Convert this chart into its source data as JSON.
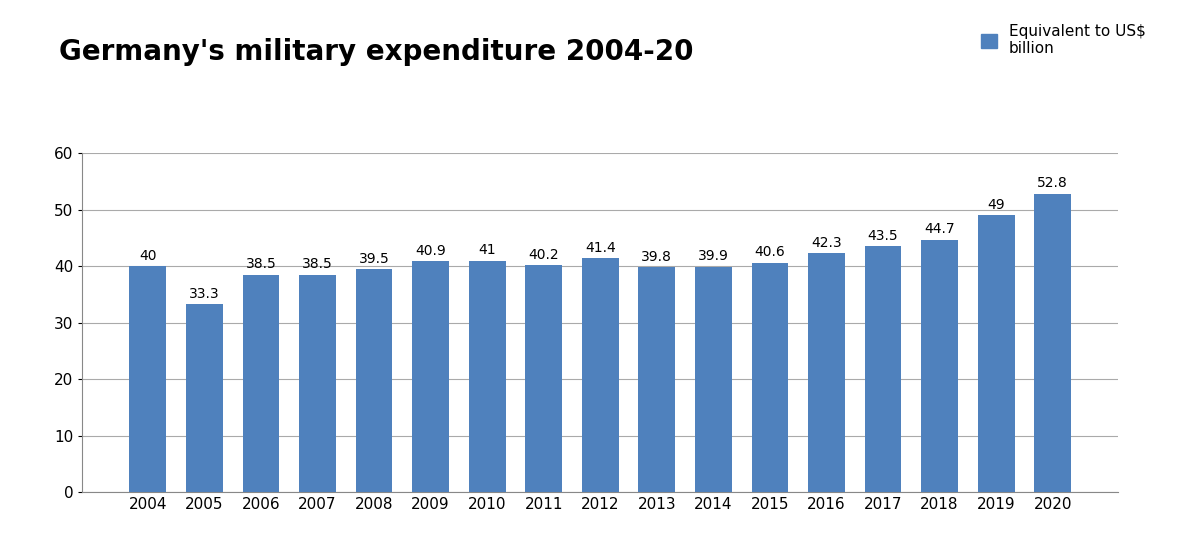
{
  "title": "Germany's military expenditure 2004-20",
  "legend_label": "Equivalent to US$\nbillion",
  "bar_color": "#4F81BD",
  "years": [
    2004,
    2005,
    2006,
    2007,
    2008,
    2009,
    2010,
    2011,
    2012,
    2013,
    2014,
    2015,
    2016,
    2017,
    2018,
    2019,
    2020
  ],
  "values": [
    40.0,
    33.3,
    38.5,
    38.5,
    39.5,
    40.9,
    41.0,
    40.2,
    41.4,
    39.8,
    39.9,
    40.6,
    42.3,
    43.5,
    44.7,
    49.0,
    52.8
  ],
  "labels": [
    "40",
    "33.3",
    "38.5",
    "38.5",
    "39.5",
    "40.9",
    "41",
    "40.2",
    "41.4",
    "39.8",
    "39.9",
    "40.6",
    "42.3",
    "43.5",
    "44.7",
    "49",
    "52.8"
  ],
  "ylim": [
    0,
    60
  ],
  "yticks": [
    0,
    10,
    20,
    30,
    40,
    50,
    60
  ],
  "title_fontsize": 20,
  "label_fontsize": 10,
  "tick_fontsize": 11,
  "legend_fontsize": 11,
  "bar_edge_color": "none",
  "grid_color": "#AAAAAA",
  "background_color": "#FFFFFF"
}
